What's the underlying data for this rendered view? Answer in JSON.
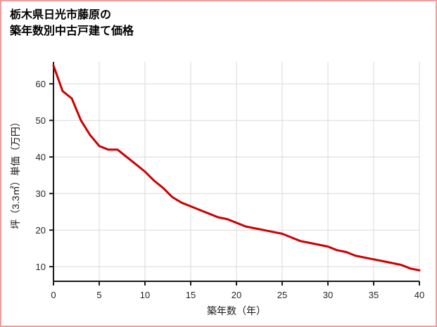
{
  "page": {
    "background": "#ffffff",
    "border_color": "#ef9e9e"
  },
  "header": {
    "title_line1": "栃木県日光市藤原の",
    "title_line2": "築年数別中古戸建て価格"
  },
  "chart_data": {
    "type": "line",
    "title": "栃木県日光市藤原の築年数別中古戸建て価格",
    "xlabel": "築年数（年）",
    "ylabel": "坪（3.3㎡）単価（万円）",
    "x": [
      0,
      1,
      2,
      3,
      4,
      5,
      6,
      7,
      8,
      9,
      10,
      11,
      12,
      13,
      14,
      15,
      16,
      17,
      18,
      19,
      20,
      21,
      22,
      23,
      24,
      25,
      26,
      27,
      28,
      29,
      30,
      31,
      32,
      33,
      34,
      35,
      36,
      37,
      38,
      39,
      40
    ],
    "series": [
      {
        "name": "坪単価",
        "color": "#cc0000",
        "values": [
          65,
          58,
          56,
          50,
          46,
          43,
          42,
          42,
          40,
          38,
          36,
          33.5,
          31.5,
          29,
          27.5,
          26.5,
          25.5,
          24.5,
          23.5,
          23,
          22,
          21,
          20.5,
          20,
          19.5,
          19,
          18,
          17,
          16.5,
          16,
          15.5,
          14.5,
          14,
          13,
          12.5,
          12,
          11.5,
          11,
          10.5,
          9.5,
          9
        ]
      }
    ],
    "xlim": [
      0,
      40
    ],
    "ylim": [
      6,
      66
    ],
    "xticks": [
      0,
      5,
      10,
      15,
      20,
      25,
      30,
      35,
      40
    ],
    "yticks": [
      10,
      20,
      30,
      40,
      50,
      60
    ],
    "grid": true,
    "legend": "none",
    "line_color": "#cc0000",
    "grid_color": "#d9d9d9",
    "axis_color": "#1a1a1a",
    "tick_label_color": "#262626"
  }
}
